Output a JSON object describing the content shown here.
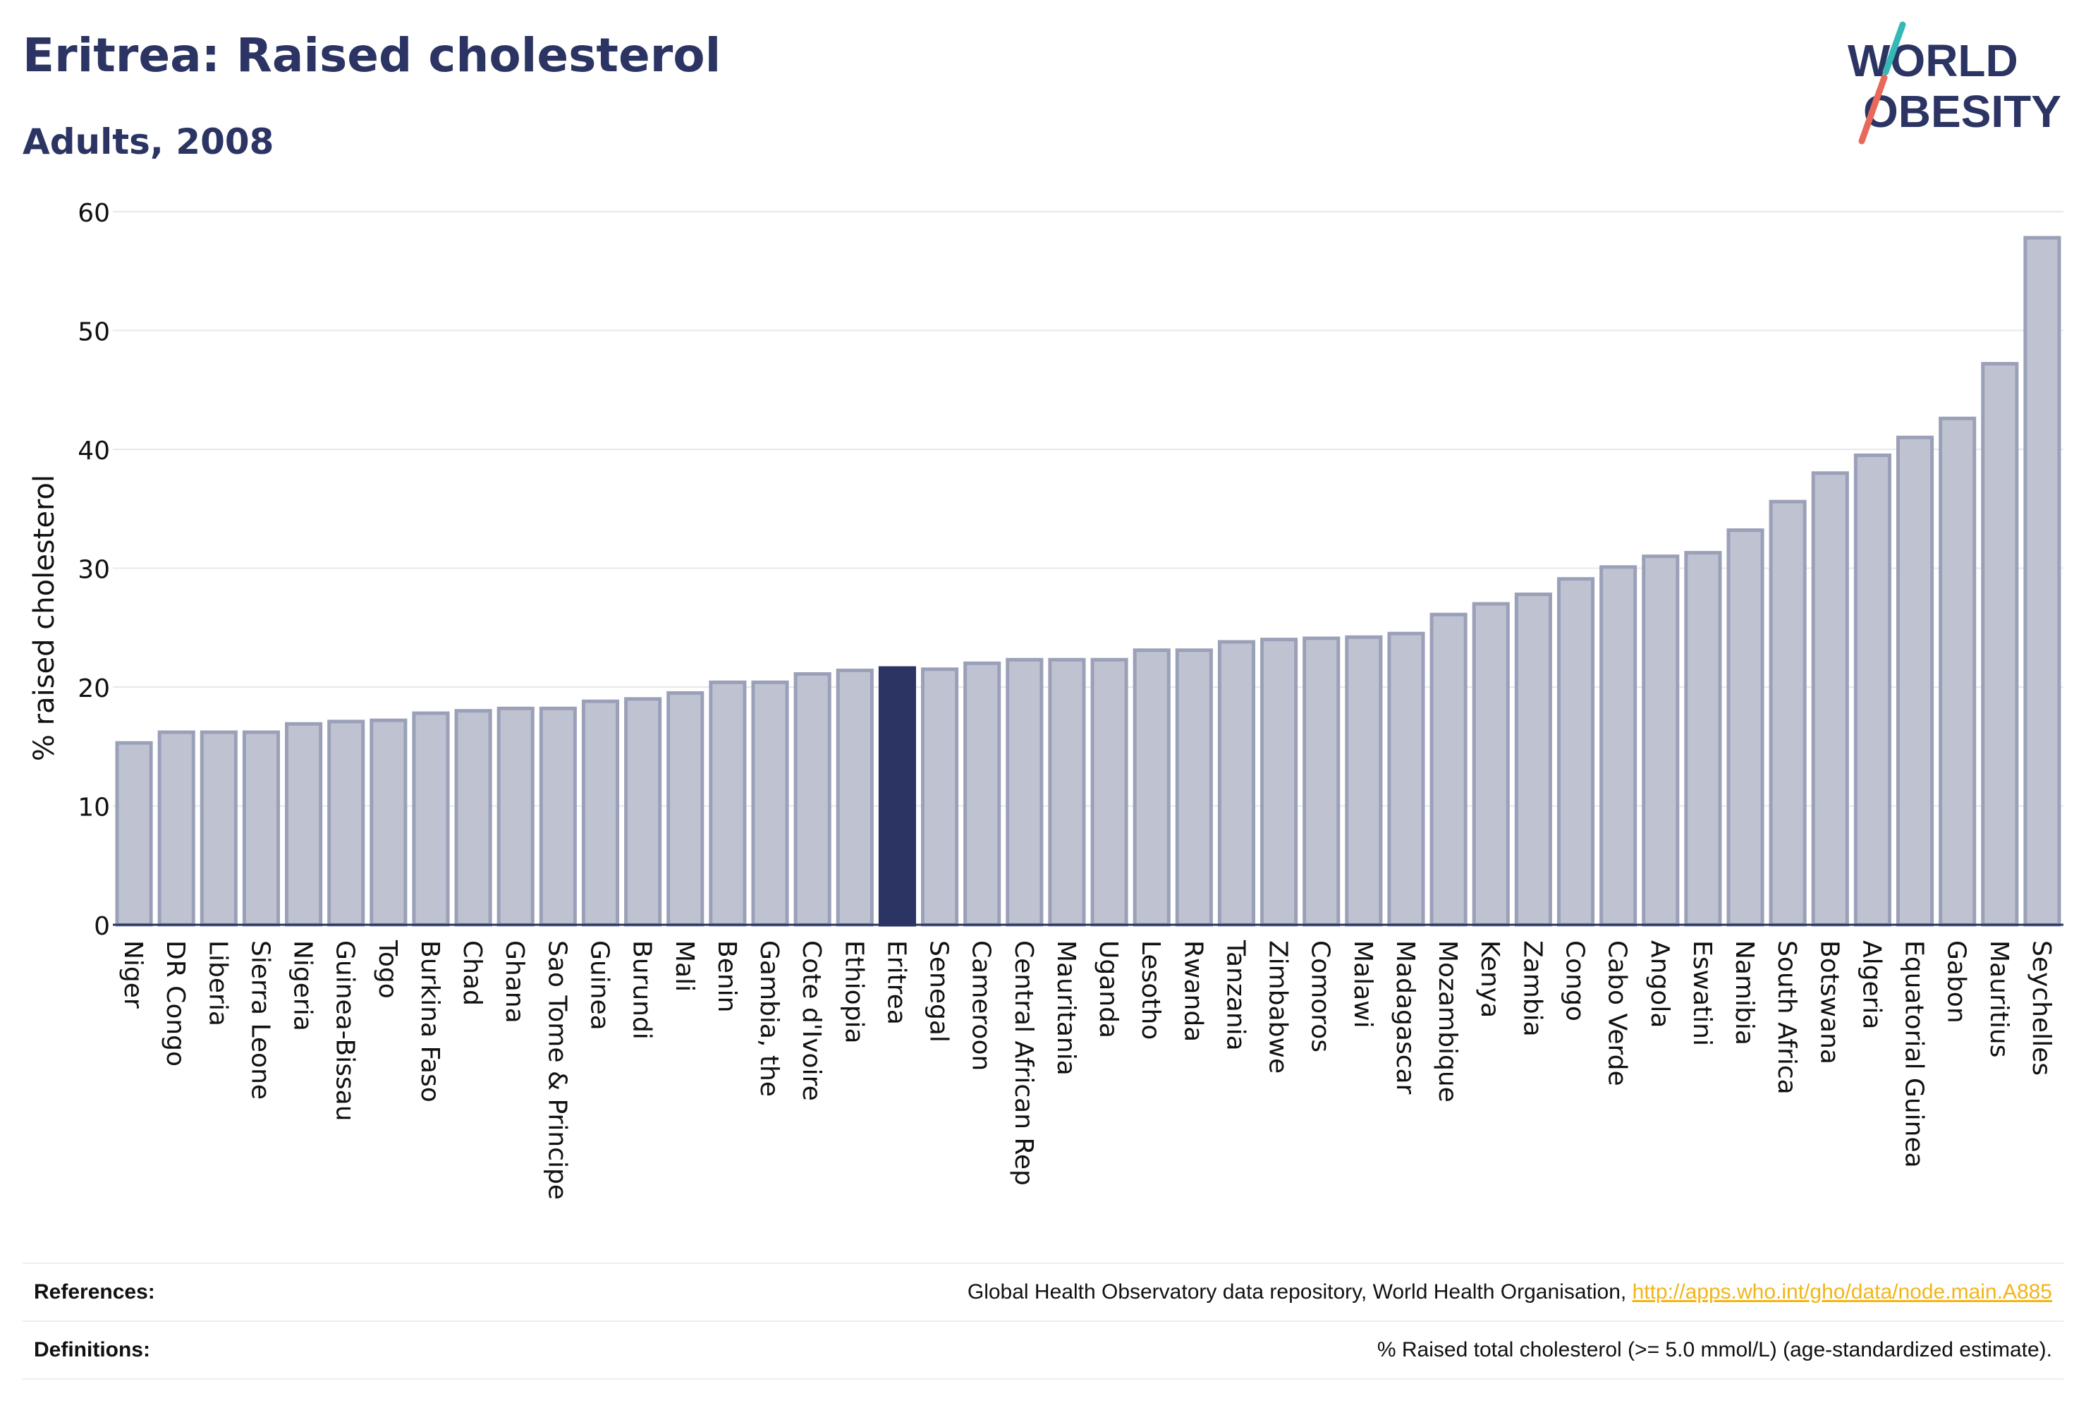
{
  "header": {
    "title": "Eritrea: Raised cholesterol",
    "subtitle": "Adults, 2008"
  },
  "logo": {
    "line1": "WORLD",
    "line2": "OBESITY",
    "accent_colors": [
      "#35b8b6",
      "#e8685a"
    ]
  },
  "colors": {
    "bar": "#bfc3d1",
    "bar_stroke": "#9aa0b8",
    "highlight": "#2b3462",
    "grid": "#e6e8ef",
    "text": "#2b3462"
  },
  "chart_data": {
    "type": "bar",
    "ylabel": "% raised cholesterol",
    "xlabel": "",
    "ylim": [
      0,
      60
    ],
    "yticks": [
      0,
      10,
      20,
      30,
      40,
      50,
      60
    ],
    "grid": true,
    "highlight": "Eritrea",
    "categories": [
      "Niger",
      "DR Congo",
      "Liberia",
      "Sierra Leone",
      "Nigeria",
      "Guinea-Bissau",
      "Togo",
      "Burkina Faso",
      "Chad",
      "Ghana",
      "Sao Tome & Principe",
      "Guinea",
      "Burundi",
      "Mali",
      "Benin",
      "Gambia, the",
      "Cote d'Ivoire",
      "Ethiopia",
      "Eritrea",
      "Senegal",
      "Cameroon",
      "Central African Rep",
      "Mauritania",
      "Uganda",
      "Lesotho",
      "Rwanda",
      "Tanzania",
      "Zimbabwe",
      "Comoros",
      "Malawi",
      "Madagascar",
      "Mozambique",
      "Kenya",
      "Zambia",
      "Congo",
      "Cabo Verde",
      "Angola",
      "Eswatini",
      "Namibia",
      "South Africa",
      "Botswana",
      "Algeria",
      "Equatorial Guinea",
      "Gabon",
      "Mauritius",
      "Seychelles"
    ],
    "values": [
      15.3,
      16.2,
      16.2,
      16.2,
      16.9,
      17.1,
      17.2,
      17.8,
      18.0,
      18.2,
      18.2,
      18.8,
      19.0,
      19.5,
      20.4,
      20.4,
      21.1,
      21.4,
      21.6,
      21.5,
      22.0,
      22.3,
      22.3,
      22.3,
      23.1,
      23.1,
      23.8,
      24.0,
      24.1,
      24.2,
      24.5,
      26.1,
      27.0,
      27.8,
      29.1,
      30.1,
      31.0,
      31.3,
      33.2,
      35.6,
      38.0,
      39.5,
      41.0,
      42.6,
      47.2,
      57.8
    ]
  },
  "footer": {
    "references_label": "References:",
    "references_text": "Global Health Observatory data repository, World Health Organisation,",
    "references_link": "http://apps.who.int/gho/data/node.main.A885",
    "definitions_label": "Definitions:",
    "definitions_text": "% Raised total cholesterol (>= 5.0 mmol/L) (age-standardized estimate)."
  }
}
